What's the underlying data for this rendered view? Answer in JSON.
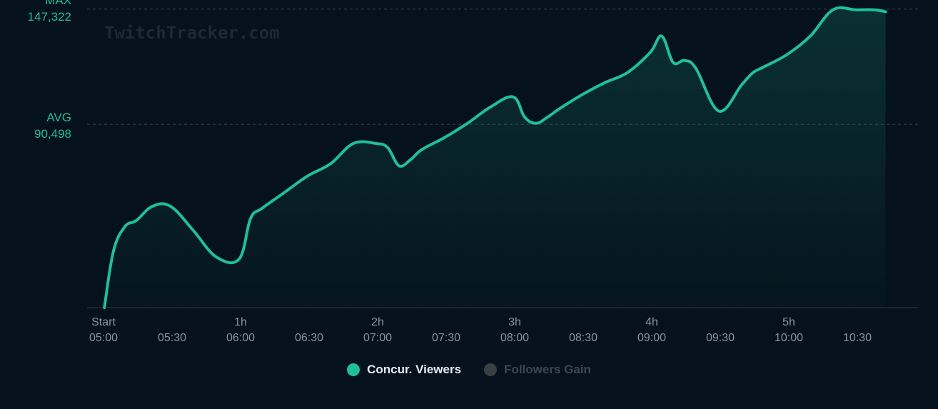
{
  "watermark": "TwitchTracker.com",
  "reference_lines": {
    "max": {
      "label": "MAX",
      "value_text": "147,322",
      "value": 147322
    },
    "avg": {
      "label": "AVG",
      "value_text": "90,498",
      "value": 90498
    }
  },
  "colors": {
    "series": "#1fbf9a",
    "inactive": "#3a3f42",
    "background": "#05111c"
  },
  "legend": [
    {
      "label": "Concur. Viewers",
      "active": true
    },
    {
      "label": "Followers Gain",
      "active": false
    }
  ],
  "chart_data": {
    "type": "area",
    "xlim": [
      0,
      345
    ],
    "ylim": [
      0,
      149000
    ],
    "x_ticks": [
      {
        "minutes": 0,
        "top": "Start",
        "bottom": "05:00"
      },
      {
        "minutes": 30,
        "top": "",
        "bottom": "05:30"
      },
      {
        "minutes": 60,
        "top": "1h",
        "bottom": "06:00"
      },
      {
        "minutes": 90,
        "top": "",
        "bottom": "06:30"
      },
      {
        "minutes": 120,
        "top": "2h",
        "bottom": "07:00"
      },
      {
        "minutes": 150,
        "top": "",
        "bottom": "07:30"
      },
      {
        "minutes": 180,
        "top": "3h",
        "bottom": "08:00"
      },
      {
        "minutes": 210,
        "top": "",
        "bottom": "08:30"
      },
      {
        "minutes": 240,
        "top": "4h",
        "bottom": "09:00"
      },
      {
        "minutes": 270,
        "top": "",
        "bottom": "09:30"
      },
      {
        "minutes": 300,
        "top": "5h",
        "bottom": "10:00"
      },
      {
        "minutes": 330,
        "top": "",
        "bottom": "10:30"
      }
    ],
    "series": [
      {
        "name": "Concur. Viewers",
        "x": [
          1,
          5,
          10,
          15,
          22,
          30,
          40,
          50,
          60,
          65,
          70,
          80,
          90,
          100,
          110,
          120,
          125,
          130,
          135,
          140,
          150,
          160,
          170,
          180,
          185,
          190,
          195,
          200,
          210,
          220,
          230,
          240,
          245,
          250,
          255,
          260,
          270,
          280,
          285,
          290,
          300,
          310,
          320,
          330,
          338,
          343
        ],
        "values": [
          0,
          28000,
          40000,
          43000,
          50000,
          50000,
          38000,
          25000,
          24000,
          44000,
          49000,
          57000,
          65000,
          71000,
          81000,
          81000,
          79000,
          70000,
          73000,
          78000,
          84000,
          91000,
          99000,
          104000,
          94000,
          91000,
          94000,
          98000,
          105000,
          111000,
          116000,
          126000,
          134000,
          121000,
          122000,
          118000,
          97000,
          110000,
          116000,
          119000,
          125000,
          134000,
          147000,
          147000,
          147000,
          146000
        ]
      }
    ]
  }
}
